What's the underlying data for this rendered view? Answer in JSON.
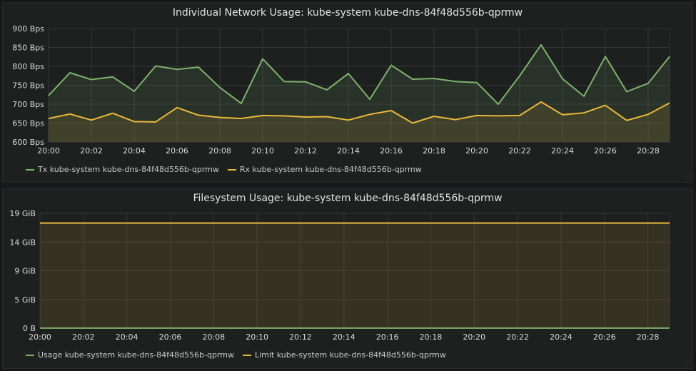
{
  "colors": {
    "tx": "#7eb26d",
    "rx": "#eab839",
    "grid": "#353535",
    "tick_text": "#d8d9da"
  },
  "panels": [
    {
      "title": "Individual Network Usage: kube-system kube-dns-84f48d556b-qprmw",
      "legend": [
        {
          "label": "Tx kube-system kube-dns-84f48d556b-qprmw",
          "color": "#7eb26d"
        },
        {
          "label": "Rx kube-system kube-dns-84f48d556b-qprmw",
          "color": "#eab839"
        }
      ]
    },
    {
      "title": "Filesystem Usage: kube-system kube-dns-84f48d556b-qprmw",
      "legend": [
        {
          "label": "Usage kube-system kube-dns-84f48d556b-qprmw",
          "color": "#7eb26d"
        },
        {
          "label": "Limit kube-system kube-dns-84f48d556b-qprmw",
          "color": "#eab839"
        }
      ]
    }
  ],
  "chart_data": [
    {
      "type": "area",
      "title": "Individual Network Usage: kube-system kube-dns-84f48d556b-qprmw",
      "ylim": [
        600,
        900
      ],
      "yticks": [
        600,
        650,
        700,
        750,
        800,
        850,
        900
      ],
      "ytick_labels": [
        "600 Bps",
        "650 Bps",
        "700 Bps",
        "750 Bps",
        "800 Bps",
        "850 Bps",
        "900 Bps"
      ],
      "xlim": [
        0,
        29
      ],
      "xticks": [
        0,
        2,
        4,
        6,
        8,
        10,
        12,
        14,
        16,
        18,
        20,
        22,
        24,
        26,
        28
      ],
      "xtick_labels": [
        "20:00",
        "20:02",
        "20:04",
        "20:06",
        "20:08",
        "20:10",
        "20:12",
        "20:14",
        "20:16",
        "20:18",
        "20:20",
        "20:22",
        "20:24",
        "20:26",
        "20:28"
      ],
      "grid": true,
      "legend_position": "bottom-left",
      "series": [
        {
          "name": "Tx kube-system kube-dns-84f48d556b-qprmw",
          "color": "#7eb26d",
          "x": [
            0,
            1,
            2,
            3,
            4,
            5,
            6,
            7,
            8,
            9,
            10,
            11,
            12,
            13,
            14,
            15,
            16,
            17,
            18,
            19,
            20,
            21,
            22,
            23,
            24,
            25,
            26,
            27,
            28,
            29
          ],
          "values": [
            723,
            783,
            765,
            772,
            734,
            801,
            792,
            798,
            744,
            702,
            820,
            760,
            759,
            738,
            781,
            713,
            803,
            766,
            768,
            760,
            757,
            700,
            775,
            857,
            767,
            721,
            826,
            733,
            755,
            826
          ]
        },
        {
          "name": "Rx kube-system kube-dns-84f48d556b-qprmw",
          "color": "#eab839",
          "x": [
            0,
            1,
            2,
            3,
            4,
            5,
            6,
            7,
            8,
            9,
            10,
            11,
            12,
            13,
            14,
            15,
            16,
            17,
            18,
            19,
            20,
            21,
            22,
            23,
            24,
            25,
            26,
            27,
            28,
            29
          ],
          "values": [
            662,
            674,
            658,
            676,
            654,
            653,
            691,
            671,
            665,
            662,
            670,
            669,
            666,
            667,
            658,
            673,
            683,
            650,
            668,
            659,
            670,
            669,
            670,
            706,
            672,
            677,
            697,
            657,
            673,
            703
          ]
        }
      ]
    },
    {
      "type": "area",
      "title": "Filesystem Usage: kube-system kube-dns-84f48d556b-qprmw",
      "ylim": [
        0,
        19
      ],
      "yticks": [
        0,
        4.75,
        9.5,
        14.25,
        19
      ],
      "ytick_labels": [
        "0 B",
        "5 GiB",
        "9 GiB",
        "14 GiB",
        "19 GiB"
      ],
      "xlim": [
        0,
        29
      ],
      "xticks": [
        0,
        2,
        4,
        6,
        8,
        10,
        12,
        14,
        16,
        18,
        20,
        22,
        24,
        26,
        28
      ],
      "xtick_labels": [
        "20:00",
        "20:02",
        "20:04",
        "20:06",
        "20:08",
        "20:10",
        "20:12",
        "20:14",
        "20:16",
        "20:18",
        "20:20",
        "20:22",
        "20:24",
        "20:26",
        "20:28"
      ],
      "grid": true,
      "legend_position": "bottom-left",
      "series": [
        {
          "name": "Usage kube-system kube-dns-84f48d556b-qprmw",
          "color": "#7eb26d",
          "x": [
            0,
            29
          ],
          "values": [
            0.01,
            0.01
          ]
        },
        {
          "name": "Limit kube-system kube-dns-84f48d556b-qprmw",
          "color": "#eab839",
          "x": [
            0,
            29
          ],
          "values": [
            17.4,
            17.4
          ]
        }
      ]
    }
  ]
}
